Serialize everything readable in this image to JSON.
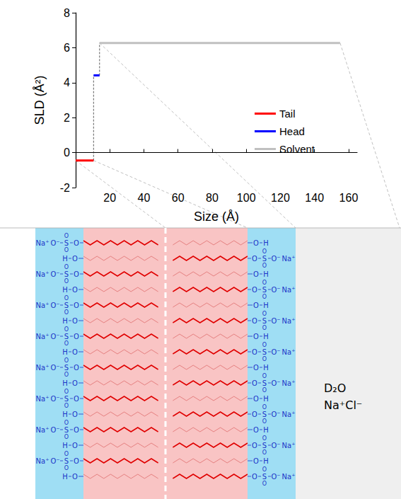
{
  "chart_data": {
    "type": "line",
    "xlabel": "Size (Å)",
    "ylabel": "SLD (Å²)",
    "xlim": [
      0,
      165
    ],
    "xticks": [
      20,
      40,
      60,
      80,
      100,
      120,
      140,
      160
    ],
    "ylim": [
      -2,
      8
    ],
    "yticks": [
      -2,
      0,
      2,
      4,
      6,
      8
    ],
    "grid": false,
    "legend": "right",
    "series": [
      {
        "name": "Tail",
        "color": "#ff0000",
        "x": [
          0,
          10.5
        ],
        "values": [
          -0.45,
          -0.45
        ]
      },
      {
        "name": "Head",
        "color": "#0000ff",
        "x": [
          10.5,
          14
        ],
        "values": [
          4.42,
          4.42
        ]
      },
      {
        "name": "Solvent",
        "color": "#c0c0c0",
        "x": [
          14,
          155
        ],
        "values": [
          6.27,
          6.27
        ]
      }
    ]
  },
  "diagram": {
    "solvent_labels": [
      "D₂O",
      "Na⁺Cl⁻"
    ],
    "left_leaflet": [
      [
        "Na⁺",
        "O⁻",
        "S",
        "O",
        "O",
        "O"
      ],
      [
        "H",
        "O"
      ],
      [
        "Na⁺",
        "O⁻",
        "S",
        "O",
        "O",
        "O"
      ],
      [
        "H",
        "O"
      ],
      [
        "Na⁺",
        "O⁻",
        "S",
        "O",
        "O",
        "O"
      ],
      [
        "H",
        "O"
      ],
      [
        "Na⁺",
        "O⁻",
        "S",
        "O",
        "O",
        "O"
      ],
      [
        "H",
        "O"
      ],
      [
        "Na⁺",
        "O⁻",
        "S",
        "O",
        "O",
        "O"
      ],
      [
        "H",
        "O"
      ],
      [
        "Na⁺",
        "O⁻",
        "S",
        "O",
        "O",
        "O"
      ],
      [
        "H",
        "O"
      ],
      [
        "Na⁺",
        "O⁻",
        "S",
        "O",
        "O",
        "O"
      ],
      [
        "H",
        "O"
      ],
      [
        "Na⁺",
        "O⁻",
        "S",
        "O",
        "O",
        "O"
      ],
      [
        "H",
        "O"
      ]
    ],
    "right_leaflet": [
      [
        "H",
        "O"
      ],
      [
        "Na⁺",
        "O⁻",
        "S",
        "O",
        "O",
        "O"
      ],
      [
        "H",
        "O"
      ],
      [
        "Na⁺",
        "O⁻",
        "S",
        "O",
        "O",
        "O"
      ],
      [
        "H",
        "O"
      ],
      [
        "Na⁺",
        "O⁻",
        "S",
        "O",
        "O",
        "O"
      ],
      [
        "H",
        "O"
      ],
      [
        "Na⁺",
        "O⁻",
        "S",
        "O",
        "O",
        "O"
      ],
      [
        "H",
        "O"
      ],
      [
        "Na⁺",
        "O⁻",
        "S",
        "O",
        "O",
        "O"
      ],
      [
        "H",
        "O"
      ],
      [
        "Na⁺",
        "O⁻",
        "S",
        "O",
        "O",
        "O"
      ],
      [
        "H",
        "O"
      ],
      [
        "Na⁺",
        "O⁻",
        "S",
        "O",
        "O",
        "O"
      ],
      [
        "H",
        "O"
      ],
      [
        "Na⁺",
        "O⁻",
        "S",
        "O",
        "O",
        "O"
      ]
    ]
  }
}
